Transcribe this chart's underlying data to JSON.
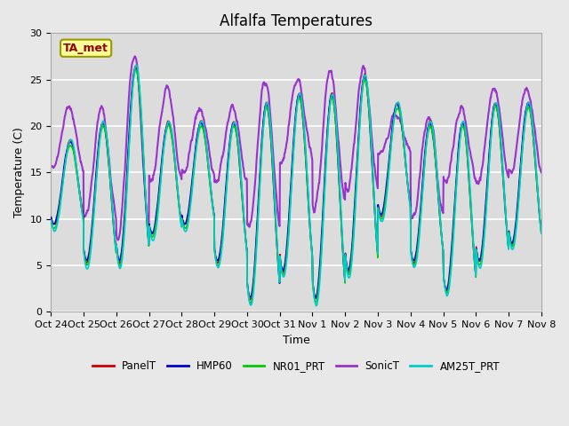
{
  "title": "Alfalfa Temperatures",
  "xlabel": "Time",
  "ylabel": "Temperature (C)",
  "ylim": [
    0,
    30
  ],
  "annotation_text": "TA_met",
  "annotation_box_color": "#FFFF99",
  "annotation_text_color": "#990000",
  "annotation_border_color": "#999900",
  "fig_bg_color": "#E8E8E8",
  "plot_bg_color": "#DCDCDC",
  "series": [
    {
      "name": "PanelT",
      "color": "#CC0000",
      "lw": 1.0,
      "zorder": 3
    },
    {
      "name": "HMP60",
      "color": "#0000CC",
      "lw": 1.2,
      "zorder": 4
    },
    {
      "name": "NR01_PRT",
      "color": "#00CC00",
      "lw": 1.2,
      "zorder": 5
    },
    {
      "name": "SonicT",
      "color": "#9933CC",
      "lw": 1.5,
      "zorder": 2
    },
    {
      "name": "AM25T_PRT",
      "color": "#00CCCC",
      "lw": 1.2,
      "zorder": 6
    }
  ],
  "xtick_labels": [
    "Oct 24",
    "Oct 25",
    "Oct 26",
    "Oct 27",
    "Oct 28",
    "Oct 29",
    "Oct 30",
    "Oct 31",
    "Nov 1",
    "Nov 2",
    "Nov 3",
    "Nov 4",
    "Nov 5",
    "Nov 6",
    "Nov 7",
    "Nov 8"
  ],
  "ytick_labels": [
    0,
    5,
    10,
    15,
    20,
    25,
    30
  ],
  "n_days": 15,
  "pts_per_day": 96,
  "grid_color": "#FFFFFF",
  "tick_fontsize": 8,
  "label_fontsize": 9,
  "title_fontsize": 12
}
